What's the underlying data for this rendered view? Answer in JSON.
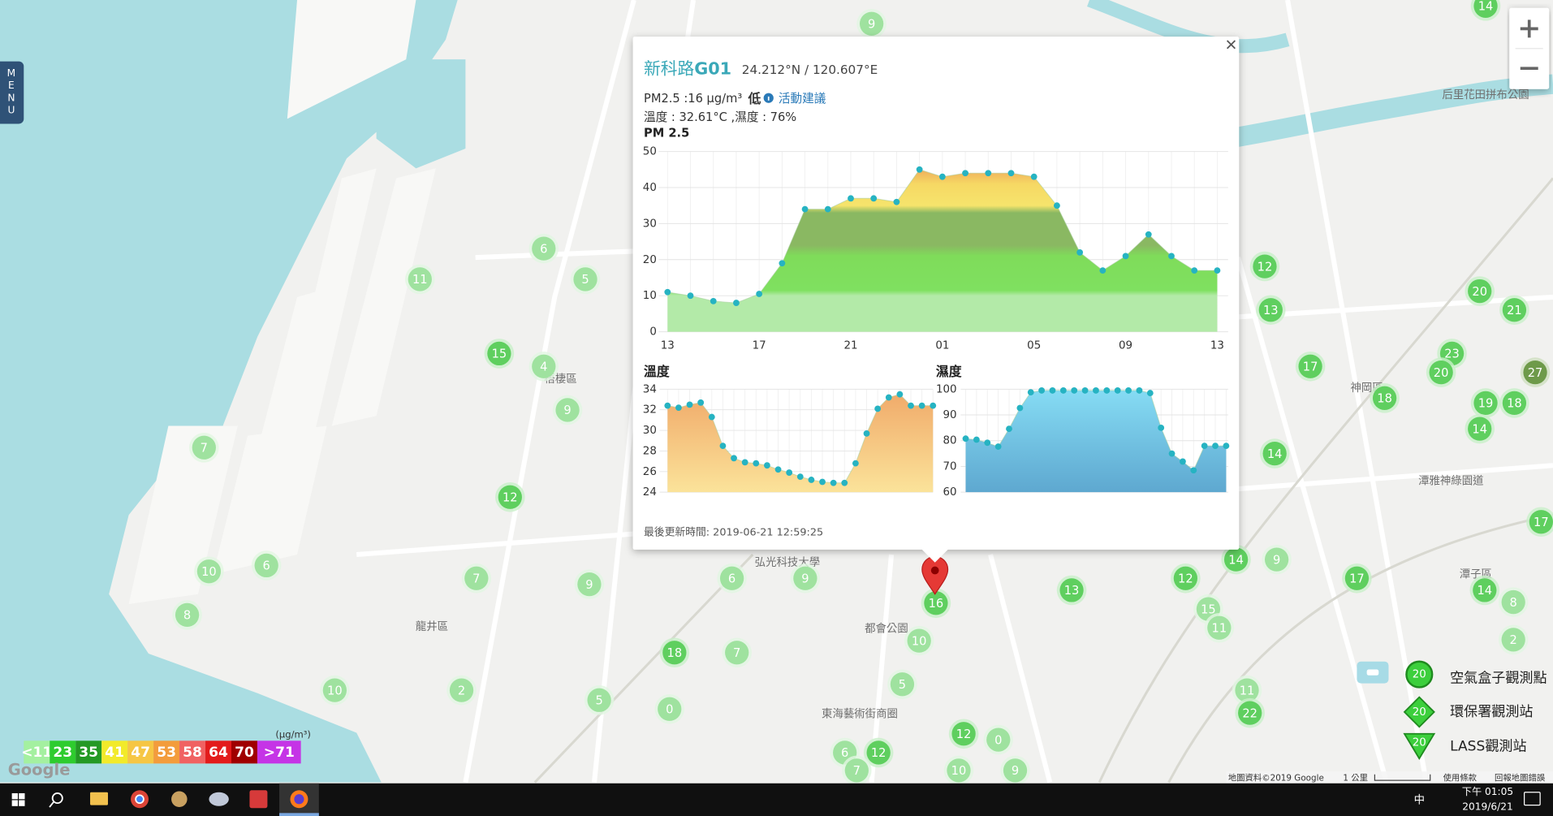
{
  "menu": "MENU",
  "popup": {
    "name_prefix": "新科路",
    "name_id": "G01",
    "coords": "24.212°N / 120.607°E",
    "pm25_text": "PM2.5 :16 μg/m³",
    "level": "低",
    "advice": "活動建議",
    "temp_humidity": "溫度 : 32.61°C ,濕度 : 76%",
    "updated": "最後更新時間: 2019-06-21 12:59:25"
  },
  "charts": [
    {
      "type": "area",
      "title": "PM 2.5",
      "categories": [
        "13",
        null,
        null,
        null,
        "17",
        null,
        null,
        null,
        "21",
        null,
        null,
        null,
        "01",
        null,
        null,
        null,
        "05",
        null,
        null,
        null,
        "09",
        null,
        null,
        null,
        "13"
      ],
      "values": [
        11,
        10,
        8.5,
        8,
        10.5,
        19,
        34,
        34,
        37,
        37,
        36,
        45,
        43,
        44,
        44,
        44,
        43,
        35,
        22,
        17,
        21,
        27,
        21,
        17,
        17
      ],
      "ylim": [
        0,
        50
      ],
      "yticks": [
        0,
        10,
        20,
        30,
        40,
        50
      ],
      "grid": true
    },
    {
      "type": "area",
      "title": "溫度",
      "values": [
        32.4,
        32.2,
        32.5,
        32.7,
        31.3,
        28.5,
        27.3,
        26.9,
        26.8,
        26.6,
        26.2,
        25.9,
        25.5,
        25.2,
        25.0,
        24.9,
        24.9,
        26.8,
        29.7,
        32.1,
        33.2,
        33.5,
        32.4,
        32.4,
        32.4
      ],
      "ylim": [
        24,
        34
      ],
      "yticks": [
        24,
        26,
        28,
        30,
        32,
        34
      ],
      "grid": true
    },
    {
      "type": "area",
      "title": "濕度",
      "values": [
        80.8,
        80.4,
        79.2,
        77.7,
        84.6,
        92.7,
        98.8,
        99.5,
        99.5,
        99.5,
        99.5,
        99.5,
        99.5,
        99.5,
        99.5,
        99.5,
        99.5,
        98.5,
        85,
        75,
        71.9,
        68.5,
        78,
        78,
        78
      ],
      "ylim": [
        60,
        100
      ],
      "yticks": [
        60,
        70,
        80,
        90,
        100
      ],
      "grid": true
    }
  ],
  "map": {
    "clusters": [
      "9",
      "6",
      "5",
      "11",
      "15",
      "4",
      "9",
      "7",
      "12",
      "10",
      "6",
      "8",
      "7",
      "9",
      "6",
      "9",
      "18",
      "7",
      "2",
      "10",
      "5",
      "0",
      "10",
      "5",
      "12",
      "6",
      "7",
      "12",
      "0",
      "10",
      "9",
      "13",
      "12",
      "15",
      "11",
      "14",
      "9",
      "17",
      "11",
      "22",
      "12",
      "13",
      "17",
      "18",
      "14",
      "20",
      "21",
      "23",
      "20",
      "19",
      "18",
      "14",
      "27",
      "14",
      "14",
      "8",
      "2",
      "17",
      "16"
    ],
    "places": [
      "梧棲區",
      "龍井區",
      "弘光科技大學",
      "都會公園",
      "東海藝術街商圈",
      "神岡區",
      "潭雅神綠園道",
      "潭子區",
      "后里花田拼布公園"
    ],
    "attribution": "地圖資料©2019 Google",
    "scale": "1 公里",
    "terms": "使用條款",
    "report": "回報地圖錯誤",
    "logo": "Google"
  },
  "legend": {
    "unit": "(μg/m³)",
    "levels": [
      "<11",
      "23",
      "35",
      "41",
      "47",
      "53",
      "58",
      "64",
      "70",
      ">71"
    ],
    "marker_sample": "20",
    "stations": [
      "空氣盒子觀測點",
      "環保署觀測站",
      "LASS觀測站"
    ]
  },
  "taskbar": {
    "time": "下午 01:05",
    "date": "2019/6/21",
    "ime": "中"
  }
}
